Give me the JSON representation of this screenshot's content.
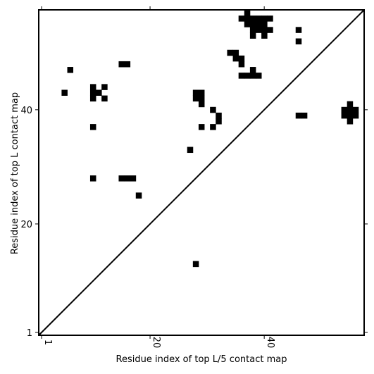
{
  "chart_data": {
    "type": "heatmap",
    "title": "",
    "xlabel": "Residue index of top L/5 contact map",
    "ylabel": "Residue index of top L contact map",
    "xlim": [
      0.5,
      57.5
    ],
    "ylim": [
      0.5,
      57.5
    ],
    "xticks": [
      1,
      20,
      40
    ],
    "yticks": [
      1,
      20,
      40
    ],
    "diagonal": true,
    "cells": [
      [
        37,
        57
      ],
      [
        36,
        56
      ],
      [
        37,
        56
      ],
      [
        38,
        56
      ],
      [
        39,
        56
      ],
      [
        40,
        56
      ],
      [
        41,
        56
      ],
      [
        37,
        55
      ],
      [
        38,
        55
      ],
      [
        39,
        55
      ],
      [
        40,
        55
      ],
      [
        38,
        54
      ],
      [
        39,
        54
      ],
      [
        40,
        54
      ],
      [
        41,
        54
      ],
      [
        46,
        54
      ],
      [
        38,
        53
      ],
      [
        40,
        53
      ],
      [
        46,
        52
      ],
      [
        34,
        50
      ],
      [
        35,
        50
      ],
      [
        35,
        49
      ],
      [
        36,
        49
      ],
      [
        36,
        48
      ],
      [
        15,
        48
      ],
      [
        16,
        48
      ],
      [
        6,
        47
      ],
      [
        38,
        47
      ],
      [
        36,
        46
      ],
      [
        37,
        46
      ],
      [
        38,
        46
      ],
      [
        39,
        46
      ],
      [
        10,
        44
      ],
      [
        12,
        44
      ],
      [
        5,
        43
      ],
      [
        10,
        43
      ],
      [
        11,
        43
      ],
      [
        28,
        43
      ],
      [
        29,
        43
      ],
      [
        10,
        42
      ],
      [
        12,
        42
      ],
      [
        28,
        42
      ],
      [
        29,
        42
      ],
      [
        29,
        41
      ],
      [
        55,
        41
      ],
      [
        31,
        40
      ],
      [
        54,
        40
      ],
      [
        55,
        40
      ],
      [
        56,
        40
      ],
      [
        32,
        39
      ],
      [
        46,
        39
      ],
      [
        47,
        39
      ],
      [
        54,
        39
      ],
      [
        55,
        39
      ],
      [
        56,
        39
      ],
      [
        32,
        38
      ],
      [
        55,
        38
      ],
      [
        10,
        37
      ],
      [
        29,
        37
      ],
      [
        31,
        37
      ],
      [
        27,
        33
      ],
      [
        10,
        28
      ],
      [
        15,
        28
      ],
      [
        16,
        28
      ],
      [
        17,
        28
      ],
      [
        18,
        25
      ],
      [
        28,
        13
      ]
    ]
  }
}
